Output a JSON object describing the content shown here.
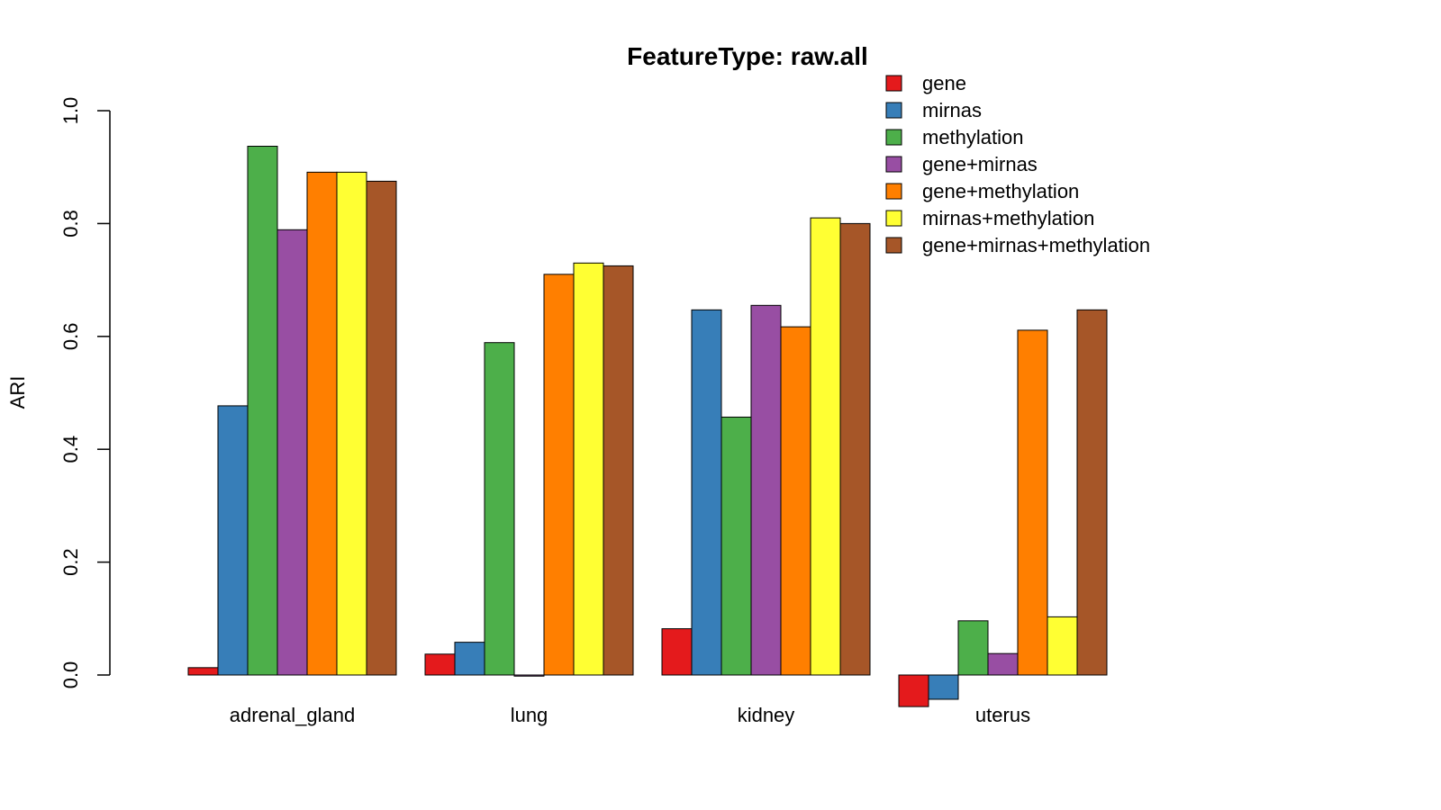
{
  "chart_data": {
    "type": "bar",
    "title": "FeatureType: raw.all",
    "xlabel": "",
    "ylabel": "ARI",
    "ylim": [
      0,
      1.0
    ],
    "yticks": [
      "0.0",
      "0.2",
      "0.4",
      "0.6",
      "0.8",
      "1.0"
    ],
    "categories": [
      "adrenal_gland",
      "lung",
      "kidney",
      "uterus"
    ],
    "series": [
      {
        "name": "gene",
        "color": "#E41A1C",
        "values": [
          0.013,
          0.037,
          0.082,
          -0.056
        ]
      },
      {
        "name": "mirnas",
        "color": "#377EB8",
        "values": [
          0.477,
          0.058,
          0.647,
          -0.043
        ]
      },
      {
        "name": "methylation",
        "color": "#4DAF4A",
        "values": [
          0.937,
          0.589,
          0.457,
          0.096
        ]
      },
      {
        "name": "gene+mirnas",
        "color": "#984EA3",
        "values": [
          0.789,
          -0.002,
          0.655,
          0.038
        ]
      },
      {
        "name": "gene+methylation",
        "color": "#FF7F00",
        "values": [
          0.891,
          0.71,
          0.617,
          0.611
        ]
      },
      {
        "name": "mirnas+methylation",
        "color": "#FFFF33",
        "values": [
          0.891,
          0.73,
          0.81,
          0.103
        ]
      },
      {
        "name": "gene+mirnas+methylation",
        "color": "#A65628",
        "values": [
          0.875,
          0.725,
          0.8,
          0.647
        ]
      }
    ],
    "grid": false,
    "legend_position": "top-right"
  }
}
